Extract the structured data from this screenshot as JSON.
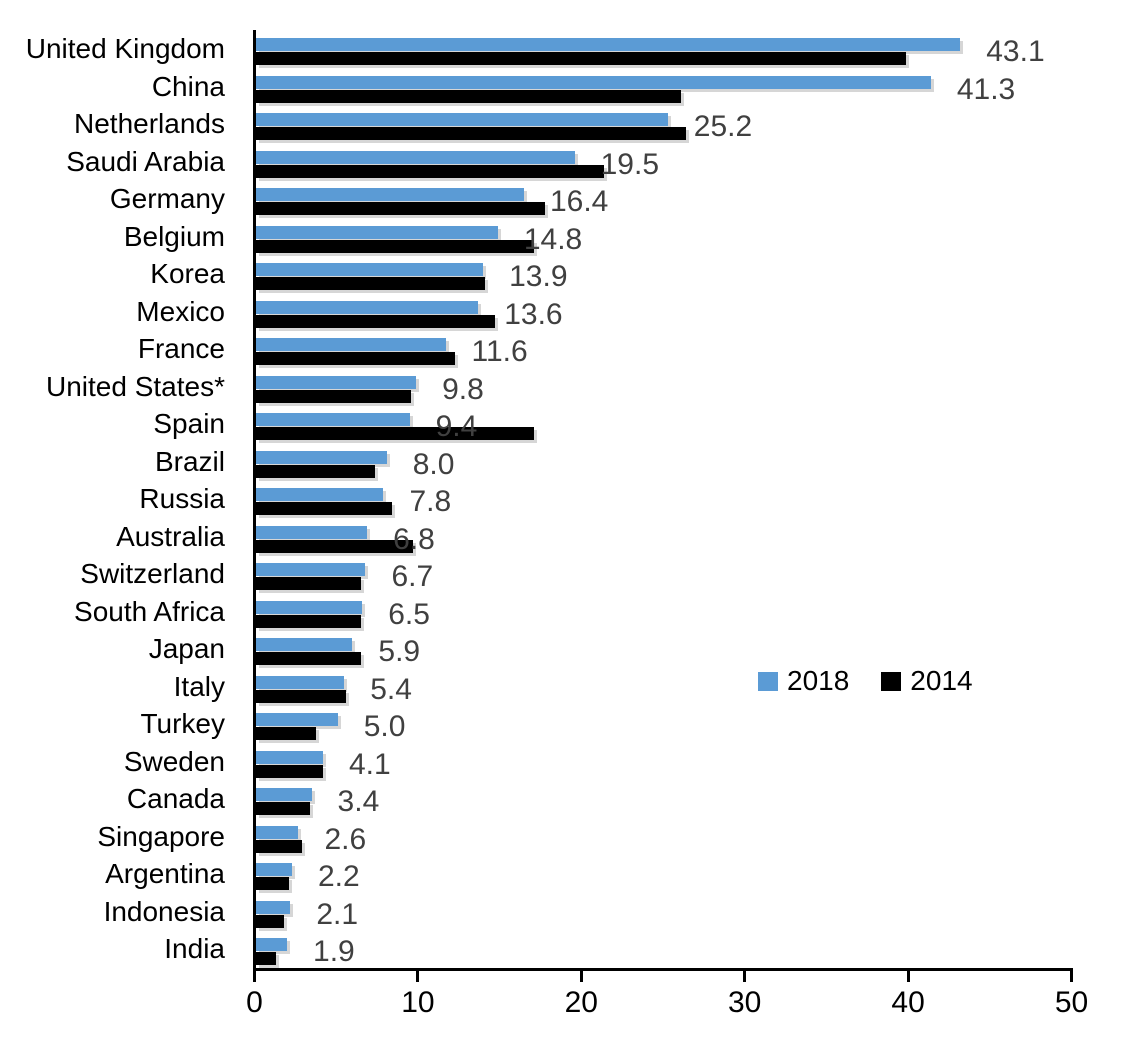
{
  "chart_data": {
    "type": "bar",
    "orientation": "horizontal",
    "title": "",
    "xlabel": "",
    "ylabel": "",
    "xlim": [
      0,
      50
    ],
    "x_ticks": [
      0,
      10,
      20,
      30,
      40,
      50
    ],
    "x_tick_labels": [
      "0",
      "10",
      "20",
      "30",
      "40",
      "50"
    ],
    "grid": false,
    "legend": {
      "position": "center-right",
      "entries": [
        "2018",
        "2014"
      ]
    },
    "categories": [
      "United Kingdom",
      "China",
      "Netherlands",
      "Saudi Arabia",
      "Germany",
      "Belgium",
      "Korea",
      "Mexico",
      "France",
      "United States*",
      "Spain",
      "Brazil",
      "Russia",
      "Australia",
      "Switzerland",
      "South Africa",
      "Japan",
      "Italy",
      "Turkey",
      "Sweden",
      "Canada",
      "Singapore",
      "Argentina",
      "Indonesia",
      "India"
    ],
    "series": [
      {
        "name": "2018",
        "color": "#5B9BD5",
        "values": [
          43.1,
          41.3,
          25.2,
          19.5,
          16.4,
          14.8,
          13.9,
          13.6,
          11.6,
          9.8,
          9.4,
          8.0,
          7.8,
          6.8,
          6.7,
          6.5,
          5.9,
          5.4,
          5.0,
          4.1,
          3.4,
          2.6,
          2.2,
          2.1,
          1.9
        ]
      },
      {
        "name": "2014",
        "color": "#000000",
        "values_estimated": true,
        "values": [
          39.8,
          26.0,
          26.3,
          21.3,
          17.7,
          17.0,
          14.0,
          14.6,
          12.2,
          9.5,
          17.0,
          7.3,
          8.3,
          9.6,
          6.4,
          6.4,
          6.4,
          5.5,
          3.7,
          4.1,
          3.3,
          2.8,
          2.0,
          1.7,
          1.2
        ]
      }
    ],
    "data_labels": [
      "43.1",
      "41.3",
      "25.2",
      "19.5",
      "16.4",
      "14.8",
      "13.9",
      "13.6",
      "11.6",
      "9.8",
      "9.4",
      "8.0",
      "7.8",
      "6.8",
      "6.7",
      "6.5",
      "5.9",
      "5.4",
      "5.0",
      "4.1",
      "3.4",
      "2.6",
      "2.2",
      "2.1",
      "1.9"
    ],
    "value_label_color": "#404040",
    "axis_color": "#000000"
  }
}
